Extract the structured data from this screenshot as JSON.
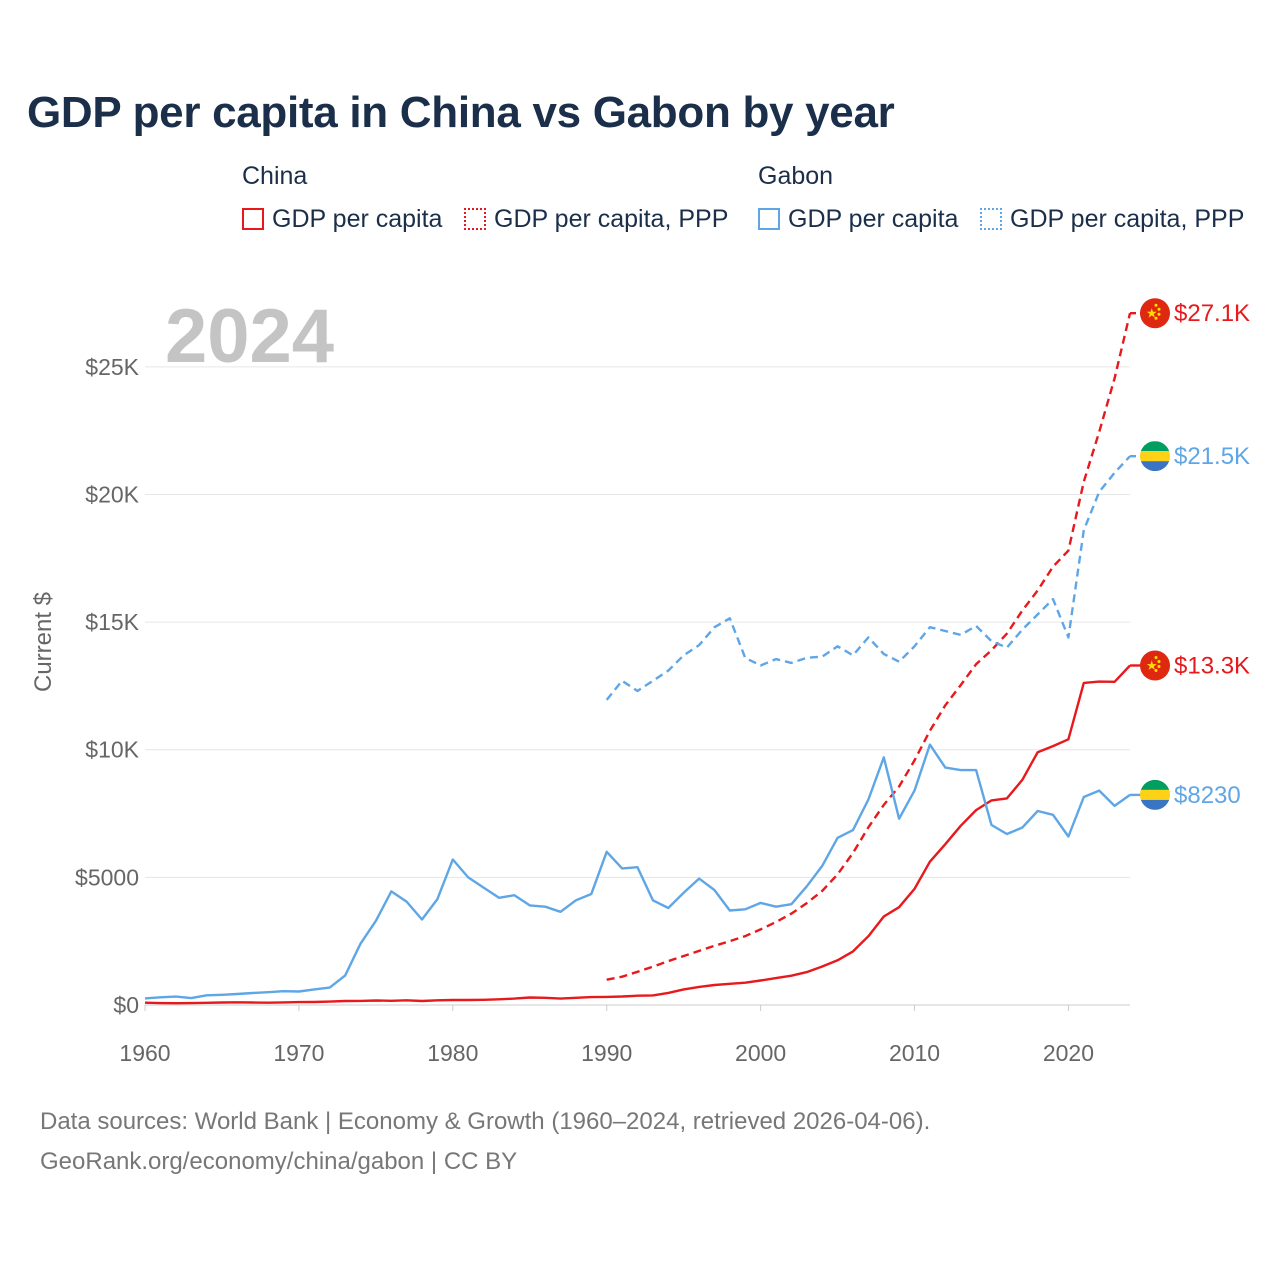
{
  "chart_data": {
    "type": "line",
    "title": "GDP per capita in China vs Gabon by year",
    "year_label": "2024",
    "ylabel": "Current $",
    "xlabel": "",
    "xlim": [
      1960,
      2024
    ],
    "ylim": [
      0,
      27500
    ],
    "x_ticks": [
      1960,
      1970,
      1980,
      1990,
      2000,
      2010,
      2020
    ],
    "y_ticks": [
      0,
      5000,
      10000,
      15000,
      20000,
      25000
    ],
    "y_tick_labels": [
      "$0",
      "$5000",
      "$10K",
      "$15K",
      "$20K",
      "$25K"
    ],
    "legend": {
      "china_title": "China",
      "gabon_title": "Gabon",
      "china_gdp": "GDP per capita",
      "china_ppp": "GDP per capita, PPP",
      "gabon_gdp": "GDP per capita",
      "gabon_ppp": "GDP per capita, PPP"
    },
    "series": [
      {
        "name": "China GDP per capita",
        "country": "China",
        "color": "#e8191c",
        "style": "solid",
        "start_year": 1960,
        "end_label": "$13.3K",
        "values": [
          90,
          76,
          71,
          75,
          85,
          98,
          104,
          97,
          91,
          100,
          113,
          119,
          132,
          157,
          160,
          178,
          165,
          185,
          156,
          183,
          195,
          197,
          203,
          225,
          251,
          294,
          282,
          251,
          284,
          311,
          318,
          333,
          366,
          377,
          473,
          610,
          709,
          782,
          829,
          873,
          959,
          1053,
          1149,
          1289,
          1509,
          1753,
          2099,
          2694,
          3468,
          3832,
          4550,
          5614,
          6301,
          7020,
          7636,
          8016,
          8094,
          8817,
          9905,
          10144,
          10409,
          12618,
          12670,
          12660,
          13300
        ]
      },
      {
        "name": "China GDP per capita, PPP",
        "country": "China",
        "color": "#e8191c",
        "style": "dashed",
        "start_year": 1990,
        "end_label": "$27.1K",
        "values": [
          990,
          1110,
          1300,
          1500,
          1720,
          1920,
          2120,
          2320,
          2500,
          2700,
          2960,
          3250,
          3580,
          3990,
          4470,
          5120,
          5960,
          6960,
          7840,
          8560,
          9580,
          10740,
          11740,
          12530,
          13350,
          13900,
          14550,
          15450,
          16240,
          17170,
          17800,
          20500,
          22450,
          24550,
          27100
        ]
      },
      {
        "name": "Gabon GDP per capita",
        "country": "Gabon",
        "color": "#5ea6e6",
        "style": "solid",
        "start_year": 1960,
        "end_label": "$8230",
        "values": [
          260,
          300,
          330,
          270,
          380,
          400,
          430,
          470,
          500,
          540,
          530,
          610,
          680,
          1150,
          2400,
          3300,
          4450,
          4050,
          3350,
          4150,
          5700,
          5000,
          4600,
          4200,
          4300,
          3900,
          3850,
          3650,
          4100,
          4350,
          6000,
          5350,
          5400,
          4100,
          3800,
          4400,
          4950,
          4500,
          3700,
          3750,
          4000,
          3850,
          3950,
          4650,
          5450,
          6550,
          6850,
          8050,
          9700,
          7300,
          8400,
          10200,
          9300,
          9200,
          9200,
          7050,
          6700,
          6950,
          7600,
          7450,
          6600,
          8150,
          8400,
          7800,
          8230
        ]
      },
      {
        "name": "Gabon GDP per capita, PPP",
        "country": "Gabon",
        "color": "#5ea6e6",
        "style": "dashed",
        "start_year": 1990,
        "end_label": "$21.5K",
        "values": [
          11950,
          12700,
          12300,
          12700,
          13100,
          13700,
          14100,
          14800,
          15150,
          13600,
          13300,
          13550,
          13400,
          13600,
          13650,
          14050,
          13700,
          14400,
          13750,
          13450,
          14050,
          14800,
          14650,
          14500,
          14850,
          14250,
          14000,
          14700,
          15300,
          15900,
          14400,
          18600,
          20100,
          20850,
          21500
        ]
      }
    ]
  },
  "colors": {
    "china": "#e8191c",
    "gabon": "#5ea6e6",
    "title": "#1b2f4b",
    "axis_text": "#666666",
    "grid": "#e6e6e6"
  },
  "footer": {
    "line1": "Data sources: World Bank | Economy & Growth (1960–2024, retrieved 2026-04-06).",
    "line2": "GeoRank.org/economy/china/gabon | CC BY"
  },
  "icons": {
    "china": "china-flag-icon",
    "gabon": "gabon-flag-icon"
  }
}
